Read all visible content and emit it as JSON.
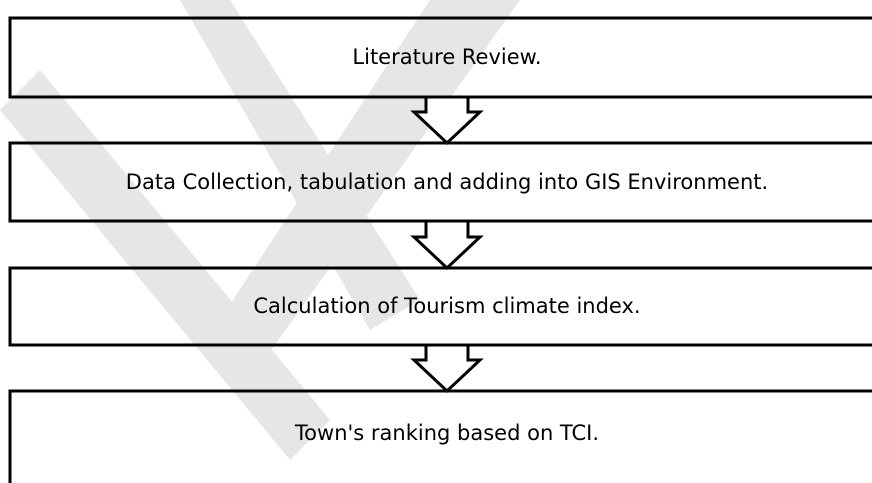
{
  "nodes": [
    {
      "label": "Literature Review."
    },
    {
      "label": "Data Collection, tabulation and adding into GIS Environment."
    },
    {
      "label": "Calculation of Tourism climate index."
    },
    {
      "label": "Town's ranking based on TCI."
    }
  ]
}
